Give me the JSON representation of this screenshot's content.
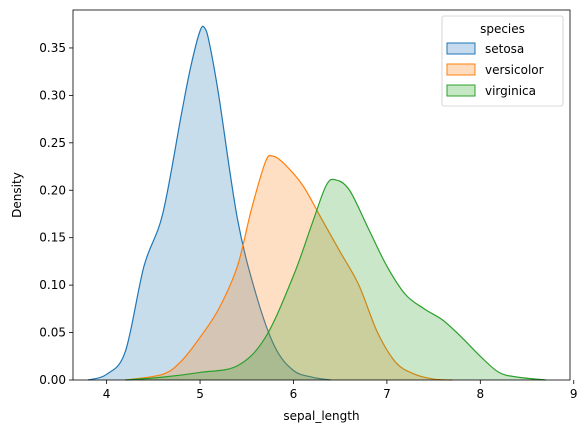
{
  "chart_data": {
    "type": "area",
    "chart_kind": "kde",
    "xlabel": "sepal_length",
    "ylabel": "Density",
    "xlim": [
      3.64,
      8.96
    ],
    "ylim": [
      0,
      0.39
    ],
    "x_ticks": [
      4,
      5,
      6,
      7,
      8,
      9
    ],
    "y_ticks": [
      0.0,
      0.05,
      0.1,
      0.15,
      0.2,
      0.25,
      0.3,
      0.35
    ],
    "y_tick_labels": [
      "0.00",
      "0.05",
      "0.10",
      "0.15",
      "0.20",
      "0.25",
      "0.30",
      "0.35"
    ],
    "grid": false,
    "legend": {
      "title": "species",
      "placement": "top-right"
    },
    "series": [
      {
        "name": "setosa",
        "color": "#1f77b4",
        "fill": "#c6dbef",
        "points": [
          [
            3.8,
            0.0
          ],
          [
            4.0,
            0.006
          ],
          [
            4.2,
            0.03
          ],
          [
            4.4,
            0.12
          ],
          [
            4.6,
            0.175
          ],
          [
            4.8,
            0.28
          ],
          [
            4.9,
            0.33
          ],
          [
            5.0,
            0.368
          ],
          [
            5.05,
            0.371
          ],
          [
            5.1,
            0.355
          ],
          [
            5.2,
            0.3
          ],
          [
            5.4,
            0.17
          ],
          [
            5.6,
            0.09
          ],
          [
            5.8,
            0.035
          ],
          [
            6.0,
            0.01
          ],
          [
            6.2,
            0.003
          ],
          [
            6.4,
            0.0
          ]
        ]
      },
      {
        "name": "versicolor",
        "color": "#ff7f0e",
        "fill": "#ffdcbd",
        "points": [
          [
            4.2,
            0.0
          ],
          [
            4.6,
            0.006
          ],
          [
            4.8,
            0.02
          ],
          [
            5.0,
            0.045
          ],
          [
            5.2,
            0.075
          ],
          [
            5.4,
            0.12
          ],
          [
            5.55,
            0.18
          ],
          [
            5.7,
            0.23
          ],
          [
            5.78,
            0.236
          ],
          [
            5.9,
            0.228
          ],
          [
            6.1,
            0.205
          ],
          [
            6.3,
            0.17
          ],
          [
            6.5,
            0.135
          ],
          [
            6.7,
            0.1
          ],
          [
            6.9,
            0.05
          ],
          [
            7.1,
            0.018
          ],
          [
            7.3,
            0.006
          ],
          [
            7.5,
            0.001
          ],
          [
            7.7,
            0.0
          ]
        ]
      },
      {
        "name": "virginica",
        "color": "#2ca02c",
        "fill": "#c6e7c3",
        "points": [
          [
            4.2,
            0.0
          ],
          [
            4.6,
            0.003
          ],
          [
            5.0,
            0.008
          ],
          [
            5.4,
            0.015
          ],
          [
            5.7,
            0.045
          ],
          [
            6.0,
            0.11
          ],
          [
            6.2,
            0.165
          ],
          [
            6.35,
            0.205
          ],
          [
            6.45,
            0.211
          ],
          [
            6.6,
            0.2
          ],
          [
            6.8,
            0.16
          ],
          [
            7.0,
            0.12
          ],
          [
            7.2,
            0.09
          ],
          [
            7.4,
            0.075
          ],
          [
            7.6,
            0.063
          ],
          [
            7.8,
            0.045
          ],
          [
            8.0,
            0.025
          ],
          [
            8.2,
            0.008
          ],
          [
            8.4,
            0.003
          ],
          [
            8.7,
            0.0
          ]
        ]
      }
    ]
  }
}
